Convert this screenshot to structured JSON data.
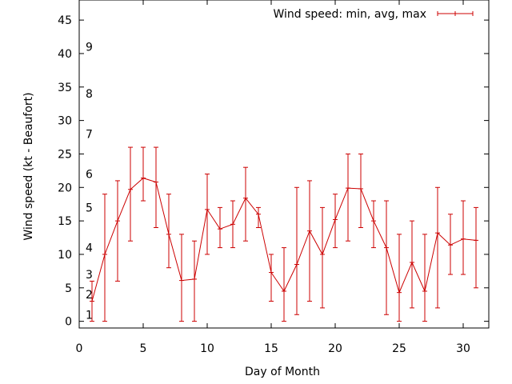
{
  "chart_data": {
    "type": "line",
    "xlabel": "Day of Month",
    "ylabel": "Wind speed (kt - Beaufort)",
    "xlim": [
      0,
      32
    ],
    "ylim": [
      -1,
      48
    ],
    "xticks": [
      0,
      5,
      10,
      15,
      20,
      25,
      30
    ],
    "yticks": [
      0,
      5,
      10,
      15,
      20,
      25,
      30,
      35,
      40,
      45
    ],
    "beaufort_labels": [
      {
        "label": "1",
        "y": 1
      },
      {
        "label": "2",
        "y": 4
      },
      {
        "label": "3",
        "y": 7
      },
      {
        "label": "4",
        "y": 11
      },
      {
        "label": "5",
        "y": 17
      },
      {
        "label": "6",
        "y": 22
      },
      {
        "label": "7",
        "y": 28
      },
      {
        "label": "8",
        "y": 34
      },
      {
        "label": "9",
        "y": 41
      }
    ],
    "legend": {
      "label": "Wind speed: min, avg, max",
      "position": "top-right"
    },
    "series": [
      {
        "name": "Wind speed: min, avg, max",
        "color": "#cc0000",
        "points": [
          {
            "x": 1,
            "avg": 3,
            "min": 0,
            "max": 6
          },
          {
            "x": 2,
            "avg": 10,
            "min": 0,
            "max": 19
          },
          {
            "x": 3,
            "avg": 15,
            "min": 6,
            "max": 21
          },
          {
            "x": 4,
            "avg": 19.7,
            "min": 12,
            "max": 26
          },
          {
            "x": 5,
            "avg": 21.4,
            "min": 18,
            "max": 26
          },
          {
            "x": 6,
            "avg": 20.8,
            "min": 14,
            "max": 26
          },
          {
            "x": 7,
            "avg": 13,
            "min": 8,
            "max": 19
          },
          {
            "x": 8,
            "avg": 6.1,
            "min": 0,
            "max": 13
          },
          {
            "x": 9,
            "avg": 6.3,
            "min": 0,
            "max": 12
          },
          {
            "x": 10,
            "avg": 16.7,
            "min": 10,
            "max": 22
          },
          {
            "x": 11,
            "avg": 13.8,
            "min": 11,
            "max": 17
          },
          {
            "x": 12,
            "avg": 14.5,
            "min": 11,
            "max": 18
          },
          {
            "x": 13,
            "avg": 18.4,
            "min": 12,
            "max": 23
          },
          {
            "x": 14,
            "avg": 16,
            "min": 14,
            "max": 17
          },
          {
            "x": 15,
            "avg": 7.3,
            "min": 3,
            "max": 10
          },
          {
            "x": 16,
            "avg": 4.5,
            "min": 0,
            "max": 11
          },
          {
            "x": 17,
            "avg": 8.5,
            "min": 1,
            "max": 20
          },
          {
            "x": 18,
            "avg": 13.5,
            "min": 3,
            "max": 21
          },
          {
            "x": 19,
            "avg": 10,
            "min": 2,
            "max": 17
          },
          {
            "x": 20,
            "avg": 15.2,
            "min": 11,
            "max": 19
          },
          {
            "x": 21,
            "avg": 19.9,
            "min": 12,
            "max": 25
          },
          {
            "x": 22,
            "avg": 19.8,
            "min": 14,
            "max": 25
          },
          {
            "x": 23,
            "avg": 15,
            "min": 11,
            "max": 18
          },
          {
            "x": 24,
            "avg": 11,
            "min": 1,
            "max": 18
          },
          {
            "x": 25,
            "avg": 4.3,
            "min": 0,
            "max": 13
          },
          {
            "x": 26,
            "avg": 8.8,
            "min": 2,
            "max": 15
          },
          {
            "x": 27,
            "avg": 4.5,
            "min": 0,
            "max": 13
          },
          {
            "x": 28,
            "avg": 13.2,
            "min": 2,
            "max": 20
          },
          {
            "x": 29,
            "avg": 11.4,
            "min": 7,
            "max": 16
          },
          {
            "x": 30,
            "avg": 12.3,
            "min": 7,
            "max": 18
          },
          {
            "x": 31,
            "avg": 12.1,
            "min": 5,
            "max": 17
          }
        ]
      }
    ]
  }
}
